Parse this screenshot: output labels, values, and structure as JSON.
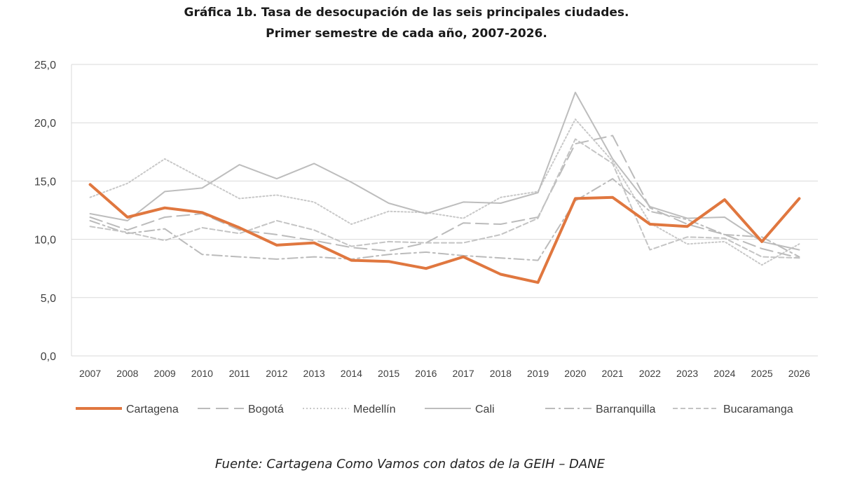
{
  "chart_data": {
    "type": "line",
    "title": "Gráfica 1b. Tasa de desocupación de las seis principales ciudades.",
    "subtitle": "Primer semestre de cada año, 2007-2026.",
    "xlabel": "",
    "ylabel": "",
    "ylim": [
      0,
      25
    ],
    "y_ticks": [
      "0,0",
      "5,0",
      "10,0",
      "15,0",
      "20,0",
      "25,0"
    ],
    "grid": true,
    "legend_position": "bottom",
    "categories": [
      "2007",
      "2008",
      "2009",
      "2010",
      "2011",
      "2012",
      "2013",
      "2014",
      "2015",
      "2016",
      "2017",
      "2018",
      "2019",
      "2020",
      "2021",
      "2022",
      "2023",
      "2024",
      "2025",
      "2026"
    ],
    "series": [
      {
        "name": "Cartagena",
        "color": "#E0773F",
        "style": "solid-thick",
        "values": [
          14.7,
          11.9,
          12.7,
          12.3,
          11.0,
          9.5,
          9.7,
          8.2,
          8.1,
          7.5,
          8.5,
          7.0,
          6.3,
          13.5,
          13.6,
          11.3,
          11.1,
          13.4,
          9.8,
          13.5
        ]
      },
      {
        "name": "Bogotá",
        "color": "#BBBBBB",
        "style": "longdash",
        "values": [
          11.9,
          10.8,
          11.9,
          12.2,
          10.8,
          10.4,
          9.9,
          9.3,
          9.0,
          9.7,
          11.4,
          11.3,
          11.9,
          18.2,
          18.9,
          12.7,
          11.3,
          10.4,
          9.2,
          8.4
        ]
      },
      {
        "name": "Medellín",
        "color": "#C8C8C8",
        "style": "dotted",
        "values": [
          13.6,
          14.8,
          16.9,
          15.2,
          13.5,
          13.8,
          13.2,
          11.3,
          12.4,
          12.3,
          11.8,
          13.6,
          14.1,
          20.3,
          16.7,
          11.4,
          9.6,
          9.8,
          7.8,
          9.6
        ]
      },
      {
        "name": "Cali",
        "color": "#BDBDBD",
        "style": "solid",
        "values": [
          12.2,
          11.6,
          14.1,
          14.4,
          16.4,
          15.2,
          16.5,
          14.9,
          13.1,
          12.2,
          13.2,
          13.1,
          14.0,
          22.6,
          16.9,
          12.8,
          11.8,
          11.9,
          9.8,
          9.1
        ]
      },
      {
        "name": "Barranquilla",
        "color": "#BBBBBB",
        "style": "dashdot",
        "values": [
          11.6,
          10.5,
          10.9,
          8.7,
          8.5,
          8.3,
          8.5,
          8.3,
          8.7,
          8.9,
          8.6,
          8.4,
          8.2,
          13.3,
          15.2,
          12.4,
          11.7,
          10.4,
          10.2,
          8.5
        ]
      },
      {
        "name": "Bucaramanga",
        "color": "#C4C4C4",
        "style": "shortdash",
        "values": [
          11.1,
          10.6,
          9.9,
          11.0,
          10.5,
          11.6,
          10.8,
          9.4,
          9.8,
          9.7,
          9.7,
          10.4,
          11.8,
          18.6,
          16.5,
          9.1,
          10.2,
          10.1,
          8.5,
          8.4
        ]
      }
    ]
  },
  "footer": {
    "source": "Fuente: Cartagena Como Vamos con datos de la GEIH – DANE"
  }
}
